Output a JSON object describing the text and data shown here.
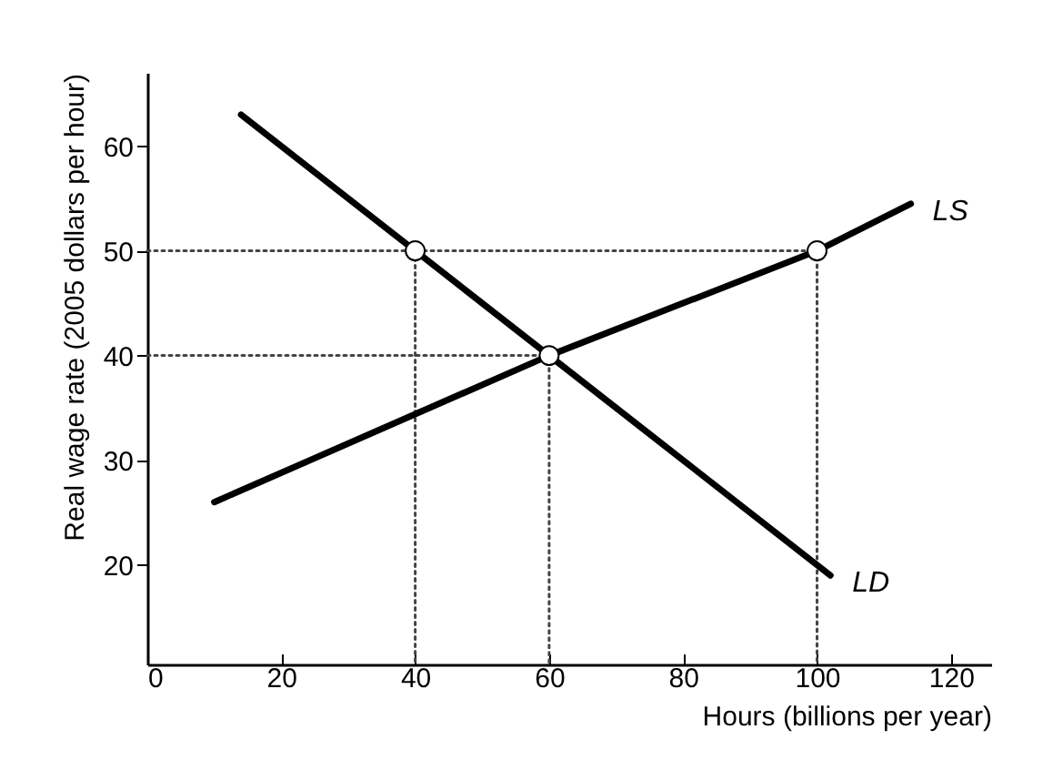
{
  "chart_data": {
    "type": "line",
    "xlabel": "Hours (billions per year)",
    "ylabel": "Real wage rate (2005 dollars per hour)",
    "xlim": [
      0,
      126
    ],
    "xticks": [
      0,
      20,
      40,
      60,
      80,
      100,
      120
    ],
    "ylim": [
      10.5,
      67
    ],
    "yticks": [
      20,
      30,
      40,
      50,
      60
    ],
    "grid": false,
    "series": [
      {
        "line_style": "dotted",
        "color": "#444444",
        "x": [
          0,
          100,
          100
        ],
        "values": [
          50,
          50,
          10.5
        ]
      },
      {
        "line_style": "dotted",
        "color": "#444444",
        "x": [
          0,
          60,
          60
        ],
        "values": [
          40,
          40,
          10.5
        ]
      },
      {
        "line_style": "dotted",
        "color": "#444444",
        "x": [
          40,
          40
        ],
        "values": [
          50,
          10.5
        ]
      },
      {
        "name": "LS",
        "line_style": "solid",
        "color": "#000000",
        "x": [
          10,
          60,
          100,
          114
        ],
        "values": [
          26,
          40,
          50,
          54.5
        ]
      },
      {
        "name": "LD",
        "line_style": "solid",
        "color": "#000000",
        "x": [
          14,
          40,
          60,
          102
        ],
        "values": [
          63,
          50,
          40,
          19
        ]
      },
      {
        "type": "scatter",
        "marker": "circle",
        "color": "#000000",
        "x": [
          40,
          60,
          100
        ],
        "values": [
          50,
          40,
          50
        ]
      }
    ]
  }
}
